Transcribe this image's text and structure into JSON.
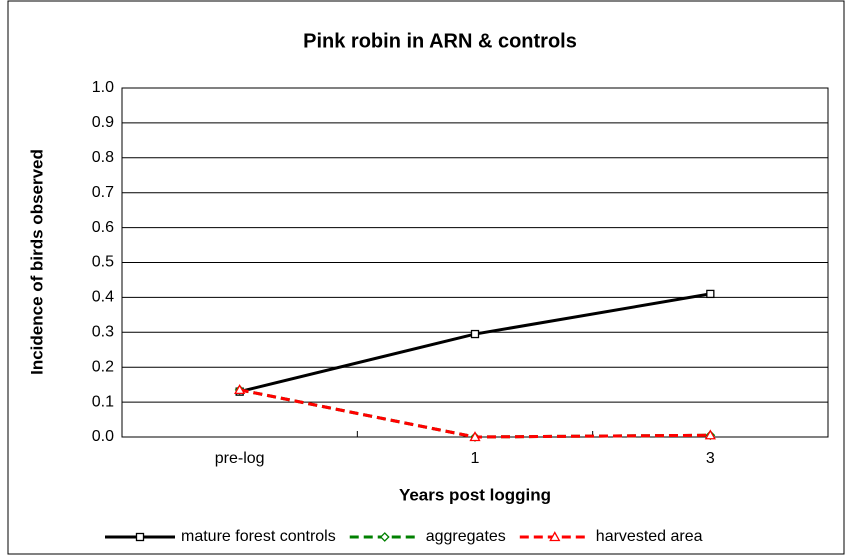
{
  "chart_data": {
    "type": "line",
    "title": "Pink robin in ARN & controls",
    "x_label": "Years post logging",
    "y_label": "Incidence of birds observed",
    "categories": [
      "pre-log",
      "1",
      "3"
    ],
    "series": [
      {
        "name": "mature forest controls",
        "color": "#000000",
        "marker": "square",
        "dashed": false,
        "values": [
          0.13,
          0.295,
          0.41
        ]
      },
      {
        "name": "aggregates",
        "color": "#008000",
        "marker": "diamond",
        "dashed": true,
        "values": [
          0.135,
          0.0,
          0.005
        ]
      },
      {
        "name": "harvested area",
        "color": "#ff0000",
        "marker": "triangle",
        "dashed": true,
        "values": [
          0.135,
          0.0,
          0.005
        ]
      }
    ],
    "ylim": [
      0,
      1
    ],
    "yticks": [
      {
        "value": 0,
        "label": "0.0"
      },
      0.1,
      0.2,
      0.3,
      0.4,
      0.5,
      0.6,
      0.7,
      0.8,
      0.9,
      {
        "value": 1,
        "label": "1.0"
      }
    ],
    "grid": true,
    "legend": "bottom"
  }
}
